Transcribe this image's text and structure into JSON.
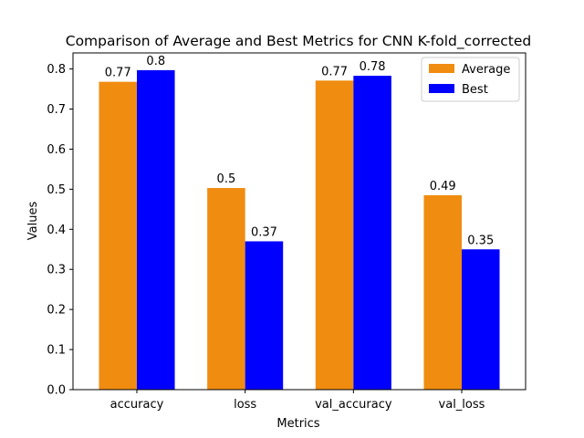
{
  "chart_data": {
    "type": "bar",
    "title": "Comparison of Average and Best Metrics for CNN K-fold_corrected",
    "xlabel": "Metrics",
    "ylabel": "Values",
    "categories": [
      "accuracy",
      "loss",
      "val_accuracy",
      "val_loss"
    ],
    "series": [
      {
        "name": "Average",
        "color": "#f08c10",
        "values": [
          0.768,
          0.503,
          0.771,
          0.485
        ],
        "labels": [
          "0.77",
          "0.5",
          "0.77",
          "0.49"
        ]
      },
      {
        "name": "Best",
        "color": "#0000ff",
        "values": [
          0.797,
          0.37,
          0.783,
          0.35
        ],
        "labels": [
          "0.8",
          "0.37",
          "0.78",
          "0.35"
        ]
      }
    ],
    "ylim": [
      0,
      0.84
    ],
    "yticks": [
      "0.0",
      "0.1",
      "0.2",
      "0.3",
      "0.4",
      "0.5",
      "0.6",
      "0.7",
      "0.8"
    ],
    "grid": false,
    "legend_position": "top-right"
  }
}
